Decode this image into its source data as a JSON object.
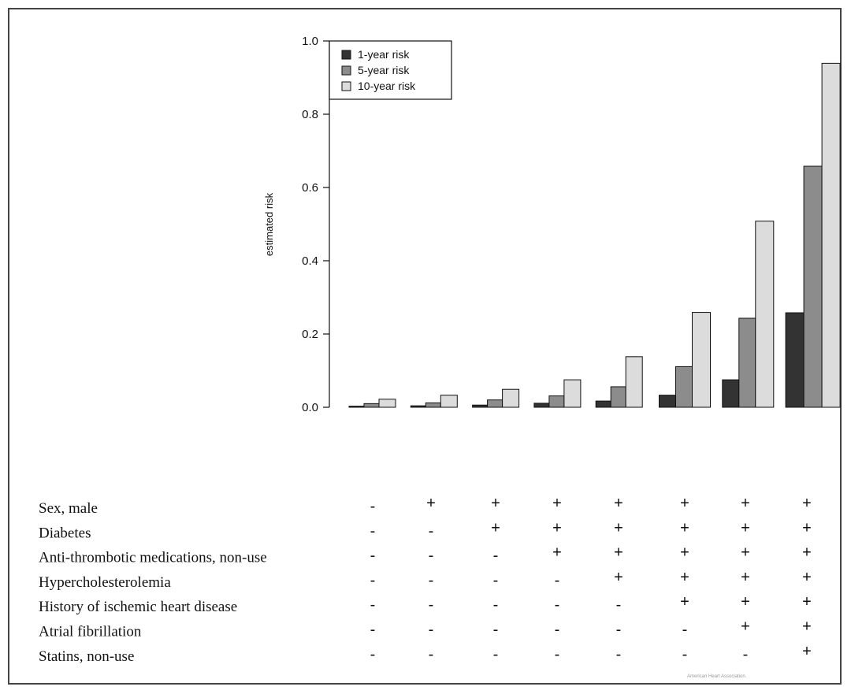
{
  "chart_data": {
    "type": "bar",
    "ylabel": "estimated risk",
    "ylim": [
      0,
      1.0
    ],
    "yticks": [
      "0.0",
      "0.2",
      "0.4",
      "0.6",
      "0.8",
      "1.0"
    ],
    "legend_position": "top-left",
    "series": [
      {
        "name": "1-year risk",
        "color": "#333333",
        "values": [
          0.003,
          0.004,
          0.006,
          0.011,
          0.017,
          0.033,
          0.075,
          0.258
        ]
      },
      {
        "name": "5-year risk",
        "color": "#8c8c8c",
        "values": [
          0.01,
          0.012,
          0.02,
          0.031,
          0.056,
          0.111,
          0.243,
          0.658
        ]
      },
      {
        "name": "10-year risk",
        "color": "#dcdcdc",
        "values": [
          0.022,
          0.033,
          0.049,
          0.075,
          0.138,
          0.259,
          0.508,
          0.939
        ]
      }
    ],
    "groups": 8
  },
  "covariate_table": {
    "rows": [
      {
        "label": "Sex, male",
        "signs": [
          "-",
          "+",
          "+",
          "+",
          "+",
          "+",
          "+",
          "+"
        ]
      },
      {
        "label": "Diabetes",
        "signs": [
          "-",
          "-",
          "+",
          "+",
          "+",
          "+",
          "+",
          "+"
        ]
      },
      {
        "label": "Anti-thrombotic medications, non-use",
        "signs": [
          "-",
          "-",
          "-",
          "+",
          "+",
          "+",
          "+",
          "+"
        ]
      },
      {
        "label": "Hypercholesterolemia",
        "signs": [
          "-",
          "-",
          "-",
          "-",
          "+",
          "+",
          "+",
          "+"
        ]
      },
      {
        "label": "History of ischemic heart disease",
        "signs": [
          "-",
          "-",
          "-",
          "-",
          "-",
          "+",
          "+",
          "+"
        ]
      },
      {
        "label": "Atrial fibrillation",
        "signs": [
          "-",
          "-",
          "-",
          "-",
          "-",
          "-",
          "+",
          "+"
        ]
      },
      {
        "label": "Statins, non-use",
        "signs": [
          "-",
          "-",
          "-",
          "-",
          "-",
          "-",
          "-",
          "+"
        ]
      }
    ]
  },
  "credit": "American Heart Association."
}
